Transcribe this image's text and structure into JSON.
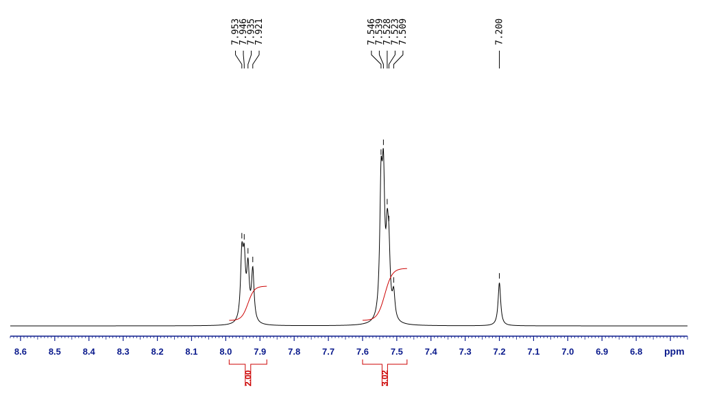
{
  "chart_data": {
    "type": "line",
    "title": "",
    "xlabel": "ppm",
    "x_unit": "ppm",
    "xlim": [
      8.63,
      6.65
    ],
    "x_reversed": true,
    "x_ticks": [
      "8.6",
      "8.5",
      "8.4",
      "8.3",
      "8.2",
      "8.1",
      "8.0",
      "7.9",
      "7.8",
      "7.7",
      "7.6",
      "7.5",
      "7.4",
      "7.3",
      "7.2",
      "7.1",
      "7.0",
      "6.9",
      "6.8"
    ],
    "peak_labels": [
      "7.953",
      "7.946",
      "7.935",
      "7.921",
      "7.546",
      "7.539",
      "7.528",
      "7.523",
      "7.509",
      "7.200"
    ],
    "peaks": [
      {
        "ppm": 7.953,
        "height": 0.22
      },
      {
        "ppm": 7.946,
        "height": 0.19
      },
      {
        "ppm": 7.935,
        "height": 0.18
      },
      {
        "ppm": 7.921,
        "height": 0.18
      },
      {
        "ppm": 7.546,
        "height": 0.43
      },
      {
        "ppm": 7.539,
        "height": 0.44
      },
      {
        "ppm": 7.528,
        "height": 0.23
      },
      {
        "ppm": 7.523,
        "height": 0.19
      },
      {
        "ppm": 7.509,
        "height": 0.09
      },
      {
        "ppm": 7.2,
        "height": 0.15
      }
    ],
    "integrals": [
      {
        "value": "2.00",
        "from": 7.99,
        "to": 7.88
      },
      {
        "value": "3.02",
        "from": 7.6,
        "to": 7.47
      }
    ],
    "colors": {
      "spectrum": "#000000",
      "axis": "#0a1a8c",
      "integral": "#cc0000"
    }
  }
}
